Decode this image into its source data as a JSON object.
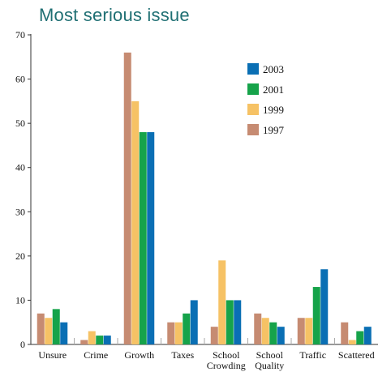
{
  "chart_data": {
    "type": "bar",
    "title": "Most serious issue",
    "categories": [
      [
        "Unsure"
      ],
      [
        "Crime"
      ],
      [
        "Growth"
      ],
      [
        "Taxes"
      ],
      [
        "School",
        "Crowding"
      ],
      [
        "School",
        "Quality"
      ],
      [
        "Traffic"
      ],
      [
        "Scattered"
      ]
    ],
    "series": [
      {
        "name": "1997",
        "color": "#c68b72",
        "values": [
          7,
          1,
          66,
          5,
          4,
          7,
          6,
          5
        ]
      },
      {
        "name": "1999",
        "color": "#f6c265",
        "values": [
          6,
          3,
          55,
          5,
          19,
          6,
          6,
          1
        ]
      },
      {
        "name": "2001",
        "color": "#16a34a",
        "values": [
          8,
          2,
          48,
          7,
          10,
          5,
          13,
          3
        ]
      },
      {
        "name": "2003",
        "color": "#0a6fb4",
        "values": [
          5,
          2,
          48,
          10,
          10,
          4,
          17,
          4
        ]
      }
    ],
    "legend_order": [
      "2003",
      "2001",
      "1999",
      "1997"
    ],
    "ylim": [
      0,
      70
    ],
    "yticks": [
      0,
      10,
      20,
      30,
      40,
      50,
      60,
      70
    ],
    "legend_position": "top-right",
    "grid": false
  }
}
